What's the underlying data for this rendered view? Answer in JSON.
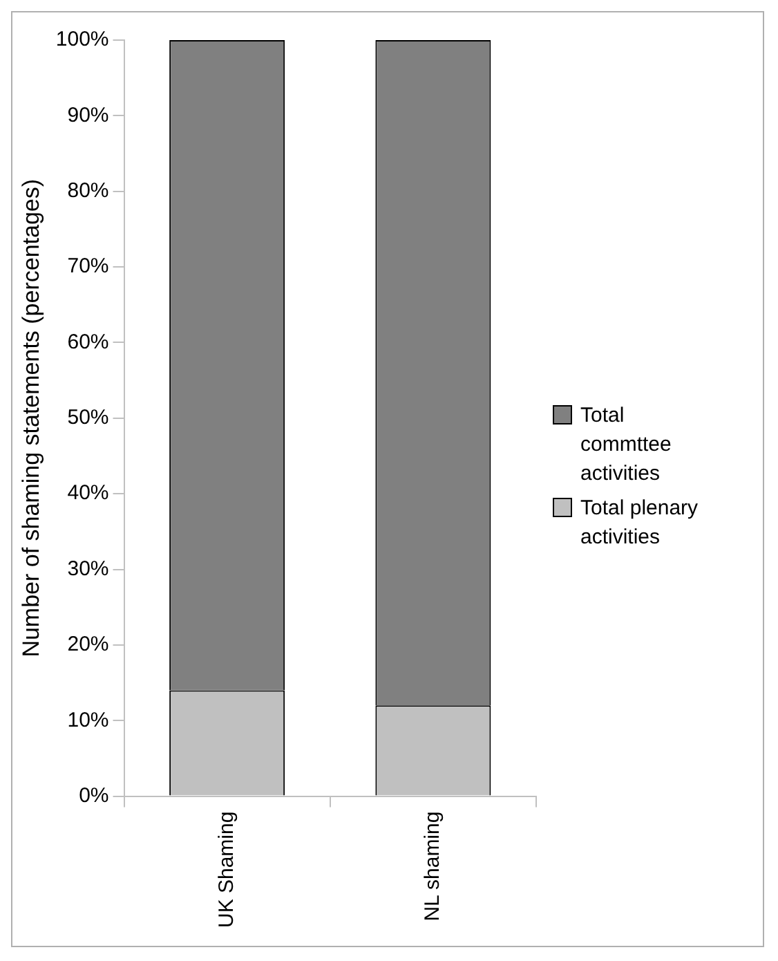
{
  "chart_data": {
    "type": "bar",
    "stacked": true,
    "ylabel": "Number of shaming statements (percentages)",
    "categories": [
      "UK Shaming",
      "NL shaming"
    ],
    "series": [
      {
        "name": "Total plenary activities",
        "color": "#c0c0c0",
        "values": [
          14,
          12
        ]
      },
      {
        "name": "Total commttee activities",
        "color": "#808080",
        "values": [
          86,
          88
        ]
      }
    ],
    "ylim": [
      0,
      100
    ],
    "yticks": [
      {
        "value": 0,
        "label": "0%"
      },
      {
        "value": 10,
        "label": "10%"
      },
      {
        "value": 20,
        "label": "20%"
      },
      {
        "value": 30,
        "label": "30%"
      },
      {
        "value": 40,
        "label": "40%"
      },
      {
        "value": 50,
        "label": "50%"
      },
      {
        "value": 60,
        "label": "60%"
      },
      {
        "value": 70,
        "label": "70%"
      },
      {
        "value": 80,
        "label": "80%"
      },
      {
        "value": 90,
        "label": "90%"
      },
      {
        "value": 100,
        "label": "100%"
      }
    ],
    "grid": false,
    "legend": "right"
  }
}
